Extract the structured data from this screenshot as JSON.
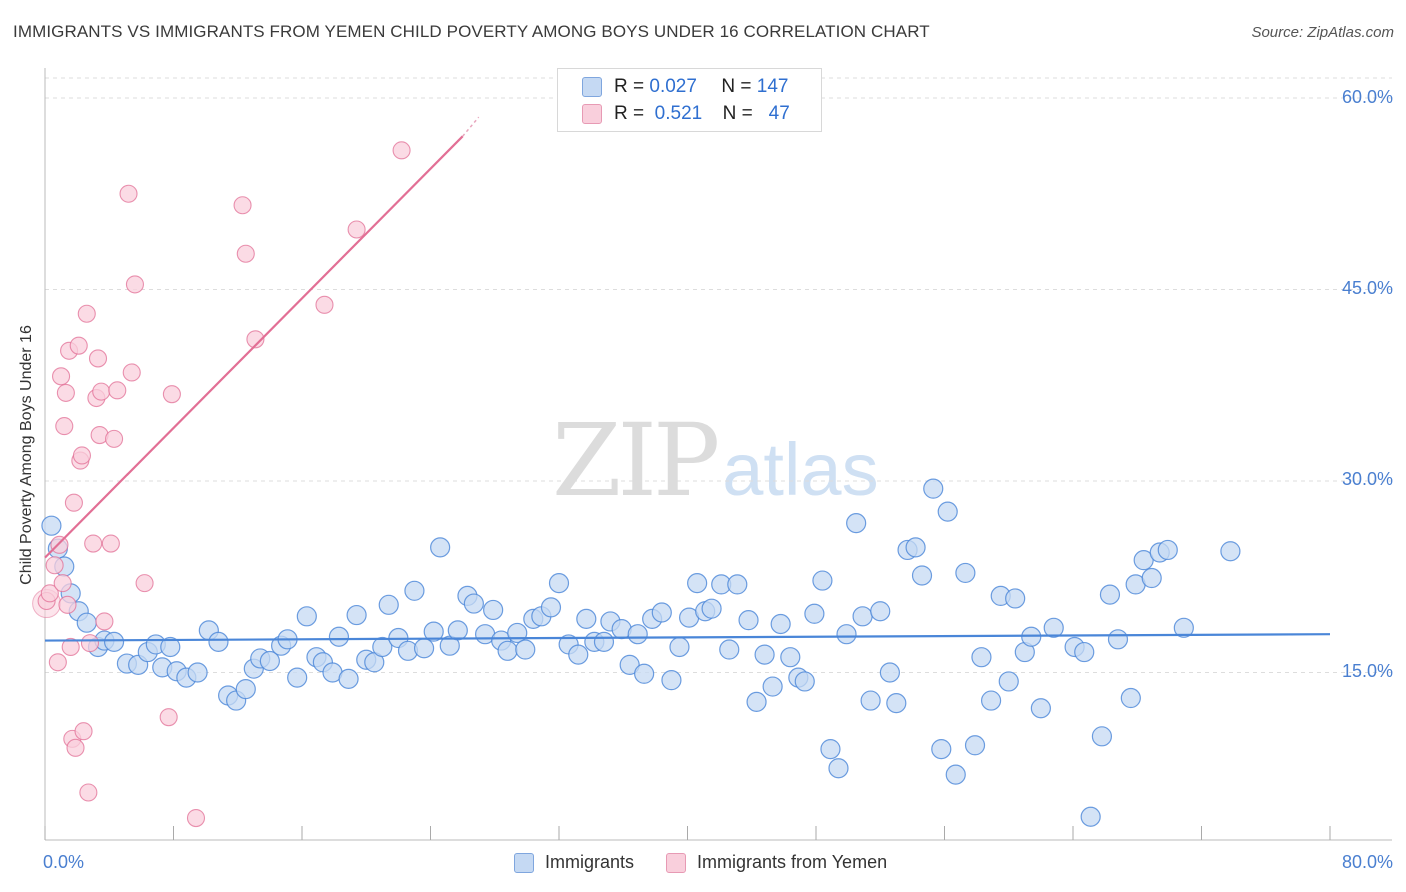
{
  "title": "IMMIGRANTS VS IMMIGRANTS FROM YEMEN CHILD POVERTY AMONG BOYS UNDER 16 CORRELATION CHART",
  "source": "Source: ZipAtlas.com",
  "watermark": {
    "zip": "ZIP",
    "atlas": "atlas"
  },
  "colors": {
    "immigrants": "#4a86d8",
    "immigrants_fill": "#c5d9f3",
    "yemen": "#e26f95",
    "yemen_fill": "#f9cfdc",
    "axis_text": "#4a7fd0",
    "grid": "#dddddd"
  },
  "legend": {
    "rows": [
      {
        "r_label": "R =",
        "r_value": "0.027",
        "n_label": "N =",
        "n_value": "147"
      },
      {
        "r_label": "R =",
        "r_value": "0.521",
        "n_label": "N =",
        "n_value": "47"
      }
    ]
  },
  "bottom_legend": [
    "Immigrants",
    "Immigrants from Yemen"
  ],
  "chart_data": {
    "type": "scatter",
    "title": "IMMIGRANTS VS IMMIGRANTS FROM YEMEN CHILD POVERTY AMONG BOYS UNDER 16 CORRELATION CHART",
    "xlabel": "",
    "ylabel": "Child Poverty Among Boys Under 16",
    "xlim": [
      0,
      80
    ],
    "ylim": [
      0,
      63
    ],
    "x_tick_labels": [
      "0.0%",
      "80.0%"
    ],
    "y_ticks": [
      15,
      30,
      45,
      60
    ],
    "y_tick_labels": [
      "15.0%",
      "30.0%",
      "45.0%",
      "60.0%"
    ],
    "grid": true,
    "series": [
      {
        "name": "Immigrants",
        "R": 0.027,
        "N": 147,
        "trend": {
          "x0": 0,
          "y0": 17.5,
          "x1": 80,
          "y1": 18.0
        },
        "points": [
          [
            0.4,
            26.5
          ],
          [
            0.8,
            24.7
          ],
          [
            1.2,
            23.3
          ],
          [
            1.6,
            21.2
          ],
          [
            2.1,
            19.8
          ],
          [
            2.6,
            18.9
          ],
          [
            3.3,
            17.0
          ],
          [
            3.7,
            17.5
          ],
          [
            4.3,
            17.4
          ],
          [
            5.1,
            15.7
          ],
          [
            5.8,
            15.6
          ],
          [
            6.4,
            16.6
          ],
          [
            6.9,
            17.2
          ],
          [
            7.3,
            15.4
          ],
          [
            7.8,
            17.0
          ],
          [
            8.2,
            15.1
          ],
          [
            8.8,
            14.6
          ],
          [
            9.5,
            15.0
          ],
          [
            10.2,
            18.3
          ],
          [
            10.8,
            17.4
          ],
          [
            11.4,
            13.2
          ],
          [
            11.9,
            12.8
          ],
          [
            12.5,
            13.7
          ],
          [
            13.0,
            15.3
          ],
          [
            13.4,
            16.1
          ],
          [
            14.0,
            15.9
          ],
          [
            14.7,
            17.1
          ],
          [
            15.1,
            17.6
          ],
          [
            15.7,
            14.6
          ],
          [
            16.3,
            19.4
          ],
          [
            16.9,
            16.2
          ],
          [
            17.3,
            15.8
          ],
          [
            17.9,
            15.0
          ],
          [
            18.3,
            17.8
          ],
          [
            18.9,
            14.5
          ],
          [
            19.4,
            19.5
          ],
          [
            20.0,
            16.0
          ],
          [
            20.5,
            15.8
          ],
          [
            21.0,
            17.0
          ],
          [
            21.4,
            20.3
          ],
          [
            22.0,
            17.7
          ],
          [
            22.6,
            16.7
          ],
          [
            23.0,
            21.4
          ],
          [
            23.6,
            16.9
          ],
          [
            24.2,
            18.2
          ],
          [
            24.6,
            24.8
          ],
          [
            25.2,
            17.1
          ],
          [
            25.7,
            18.3
          ],
          [
            26.3,
            21.0
          ],
          [
            26.7,
            20.4
          ],
          [
            27.4,
            18.0
          ],
          [
            27.9,
            19.9
          ],
          [
            28.4,
            17.5
          ],
          [
            28.8,
            16.7
          ],
          [
            29.4,
            18.1
          ],
          [
            29.9,
            16.8
          ],
          [
            30.4,
            19.2
          ],
          [
            30.9,
            19.4
          ],
          [
            31.5,
            20.1
          ],
          [
            32.0,
            22.0
          ],
          [
            32.6,
            17.2
          ],
          [
            33.2,
            16.4
          ],
          [
            33.7,
            19.2
          ],
          [
            34.2,
            17.4
          ],
          [
            34.8,
            17.4
          ],
          [
            35.2,
            19.0
          ],
          [
            35.9,
            18.4
          ],
          [
            36.4,
            15.6
          ],
          [
            36.9,
            18.0
          ],
          [
            37.3,
            14.9
          ],
          [
            37.8,
            19.2
          ],
          [
            38.4,
            19.7
          ],
          [
            39.0,
            14.4
          ],
          [
            39.5,
            17.0
          ],
          [
            40.1,
            19.3
          ],
          [
            40.6,
            22.0
          ],
          [
            41.1,
            19.8
          ],
          [
            41.5,
            20.0
          ],
          [
            42.1,
            21.9
          ],
          [
            42.6,
            16.8
          ],
          [
            43.1,
            21.9
          ],
          [
            43.8,
            19.1
          ],
          [
            44.3,
            12.7
          ],
          [
            44.8,
            16.4
          ],
          [
            45.3,
            13.9
          ],
          [
            45.8,
            18.8
          ],
          [
            46.4,
            16.2
          ],
          [
            46.9,
            14.6
          ],
          [
            47.3,
            14.3
          ],
          [
            47.9,
            19.6
          ],
          [
            48.4,
            22.2
          ],
          [
            48.9,
            9.0
          ],
          [
            49.4,
            7.5
          ],
          [
            49.9,
            18.0
          ],
          [
            50.5,
            26.7
          ],
          [
            50.9,
            19.4
          ],
          [
            51.4,
            12.8
          ],
          [
            52.0,
            19.8
          ],
          [
            52.6,
            15.0
          ],
          [
            53.0,
            12.6
          ],
          [
            53.7,
            24.6
          ],
          [
            54.2,
            24.8
          ],
          [
            54.6,
            22.6
          ],
          [
            55.3,
            29.4
          ],
          [
            55.8,
            9.0
          ],
          [
            56.2,
            27.6
          ],
          [
            56.7,
            7.0
          ],
          [
            57.3,
            22.8
          ],
          [
            57.9,
            9.3
          ],
          [
            58.3,
            16.2
          ],
          [
            58.9,
            12.8
          ],
          [
            59.5,
            21.0
          ],
          [
            60.0,
            14.3
          ],
          [
            60.4,
            20.8
          ],
          [
            61.0,
            16.6
          ],
          [
            61.4,
            17.8
          ],
          [
            62.0,
            12.2
          ],
          [
            62.8,
            18.5
          ],
          [
            64.1,
            17.0
          ],
          [
            64.7,
            16.6
          ],
          [
            65.1,
            3.7
          ],
          [
            65.8,
            10.0
          ],
          [
            66.3,
            21.1
          ],
          [
            66.8,
            17.6
          ],
          [
            67.6,
            13.0
          ],
          [
            67.9,
            21.9
          ],
          [
            68.4,
            23.8
          ],
          [
            68.9,
            22.4
          ],
          [
            69.4,
            24.4
          ],
          [
            69.9,
            24.6
          ],
          [
            70.9,
            18.5
          ],
          [
            73.8,
            24.5
          ]
        ]
      },
      {
        "name": "Immigrants from Yemen",
        "R": 0.521,
        "N": 47,
        "trend": {
          "x0": 0,
          "y0": 24.0,
          "x1": 26,
          "y1": 57.0,
          "dashed_to": {
            "x": 27,
            "y": 58.5
          }
        },
        "points": [
          [
            0.1,
            20.6
          ],
          [
            0.3,
            21.2
          ],
          [
            0.6,
            23.4
          ],
          [
            0.8,
            15.8
          ],
          [
            0.9,
            25.0
          ],
          [
            1.0,
            38.2
          ],
          [
            1.1,
            22.0
          ],
          [
            1.2,
            34.3
          ],
          [
            1.3,
            36.9
          ],
          [
            1.4,
            20.3
          ],
          [
            1.5,
            40.2
          ],
          [
            1.6,
            17.0
          ],
          [
            1.7,
            9.8
          ],
          [
            1.8,
            28.3
          ],
          [
            1.9,
            9.1
          ],
          [
            2.1,
            40.6
          ],
          [
            2.2,
            31.6
          ],
          [
            2.3,
            32.0
          ],
          [
            2.4,
            10.4
          ],
          [
            2.6,
            43.1
          ],
          [
            2.7,
            5.6
          ],
          [
            2.8,
            17.3
          ],
          [
            3.0,
            25.1
          ],
          [
            3.2,
            36.5
          ],
          [
            3.3,
            39.6
          ],
          [
            3.4,
            33.6
          ],
          [
            3.5,
            37.0
          ],
          [
            3.7,
            19.0
          ],
          [
            4.1,
            25.1
          ],
          [
            4.3,
            33.3
          ],
          [
            4.5,
            37.1
          ],
          [
            5.2,
            52.5
          ],
          [
            5.4,
            38.5
          ],
          [
            5.6,
            45.4
          ],
          [
            6.2,
            22.0
          ],
          [
            7.7,
            11.5
          ],
          [
            7.9,
            36.8
          ],
          [
            9.4,
            3.6
          ],
          [
            12.3,
            51.6
          ],
          [
            12.5,
            47.8
          ],
          [
            13.1,
            41.1
          ],
          [
            17.4,
            43.8
          ],
          [
            19.4,
            49.7
          ],
          [
            22.2,
            55.9
          ]
        ]
      }
    ]
  }
}
